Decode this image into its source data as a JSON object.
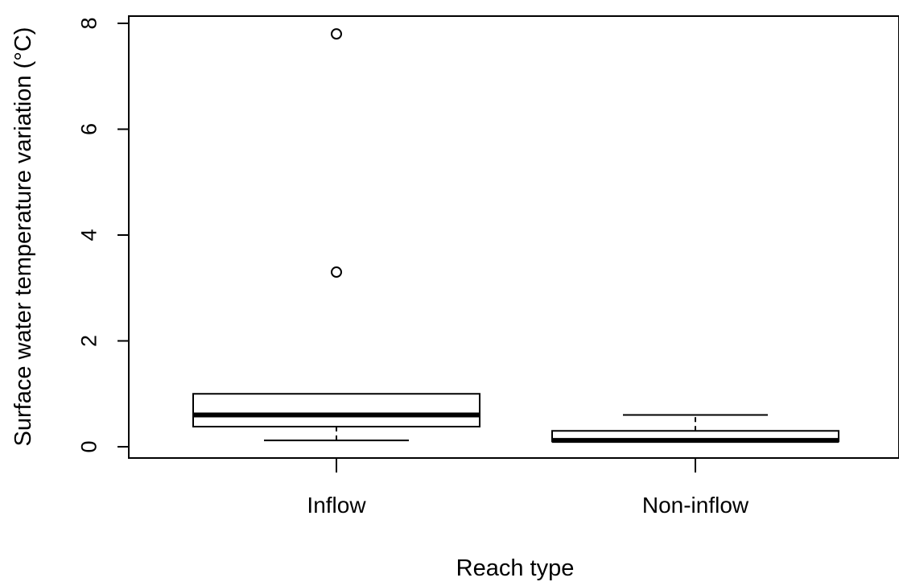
{
  "chart_data": {
    "type": "boxplot",
    "title": "",
    "xlabel": "Reach type",
    "ylabel": "Surface water temperature variation (°C)",
    "ylim": [
      -0.2,
      8.2
    ],
    "yticks": [
      0,
      2,
      4,
      6,
      8
    ],
    "grid": false,
    "categories": [
      "Inflow",
      "Non-inflow"
    ],
    "boxes": [
      {
        "category": "Inflow",
        "whisker_low": 0.12,
        "q1": 0.38,
        "median": 0.6,
        "q3": 1.0,
        "whisker_high": 1.0,
        "outliers": [
          3.3,
          7.8
        ]
      },
      {
        "category": "Non-inflow",
        "whisker_low": 0.1,
        "q1": 0.1,
        "median": 0.12,
        "q3": 0.3,
        "whisker_high": 0.6,
        "outliers": []
      }
    ]
  }
}
